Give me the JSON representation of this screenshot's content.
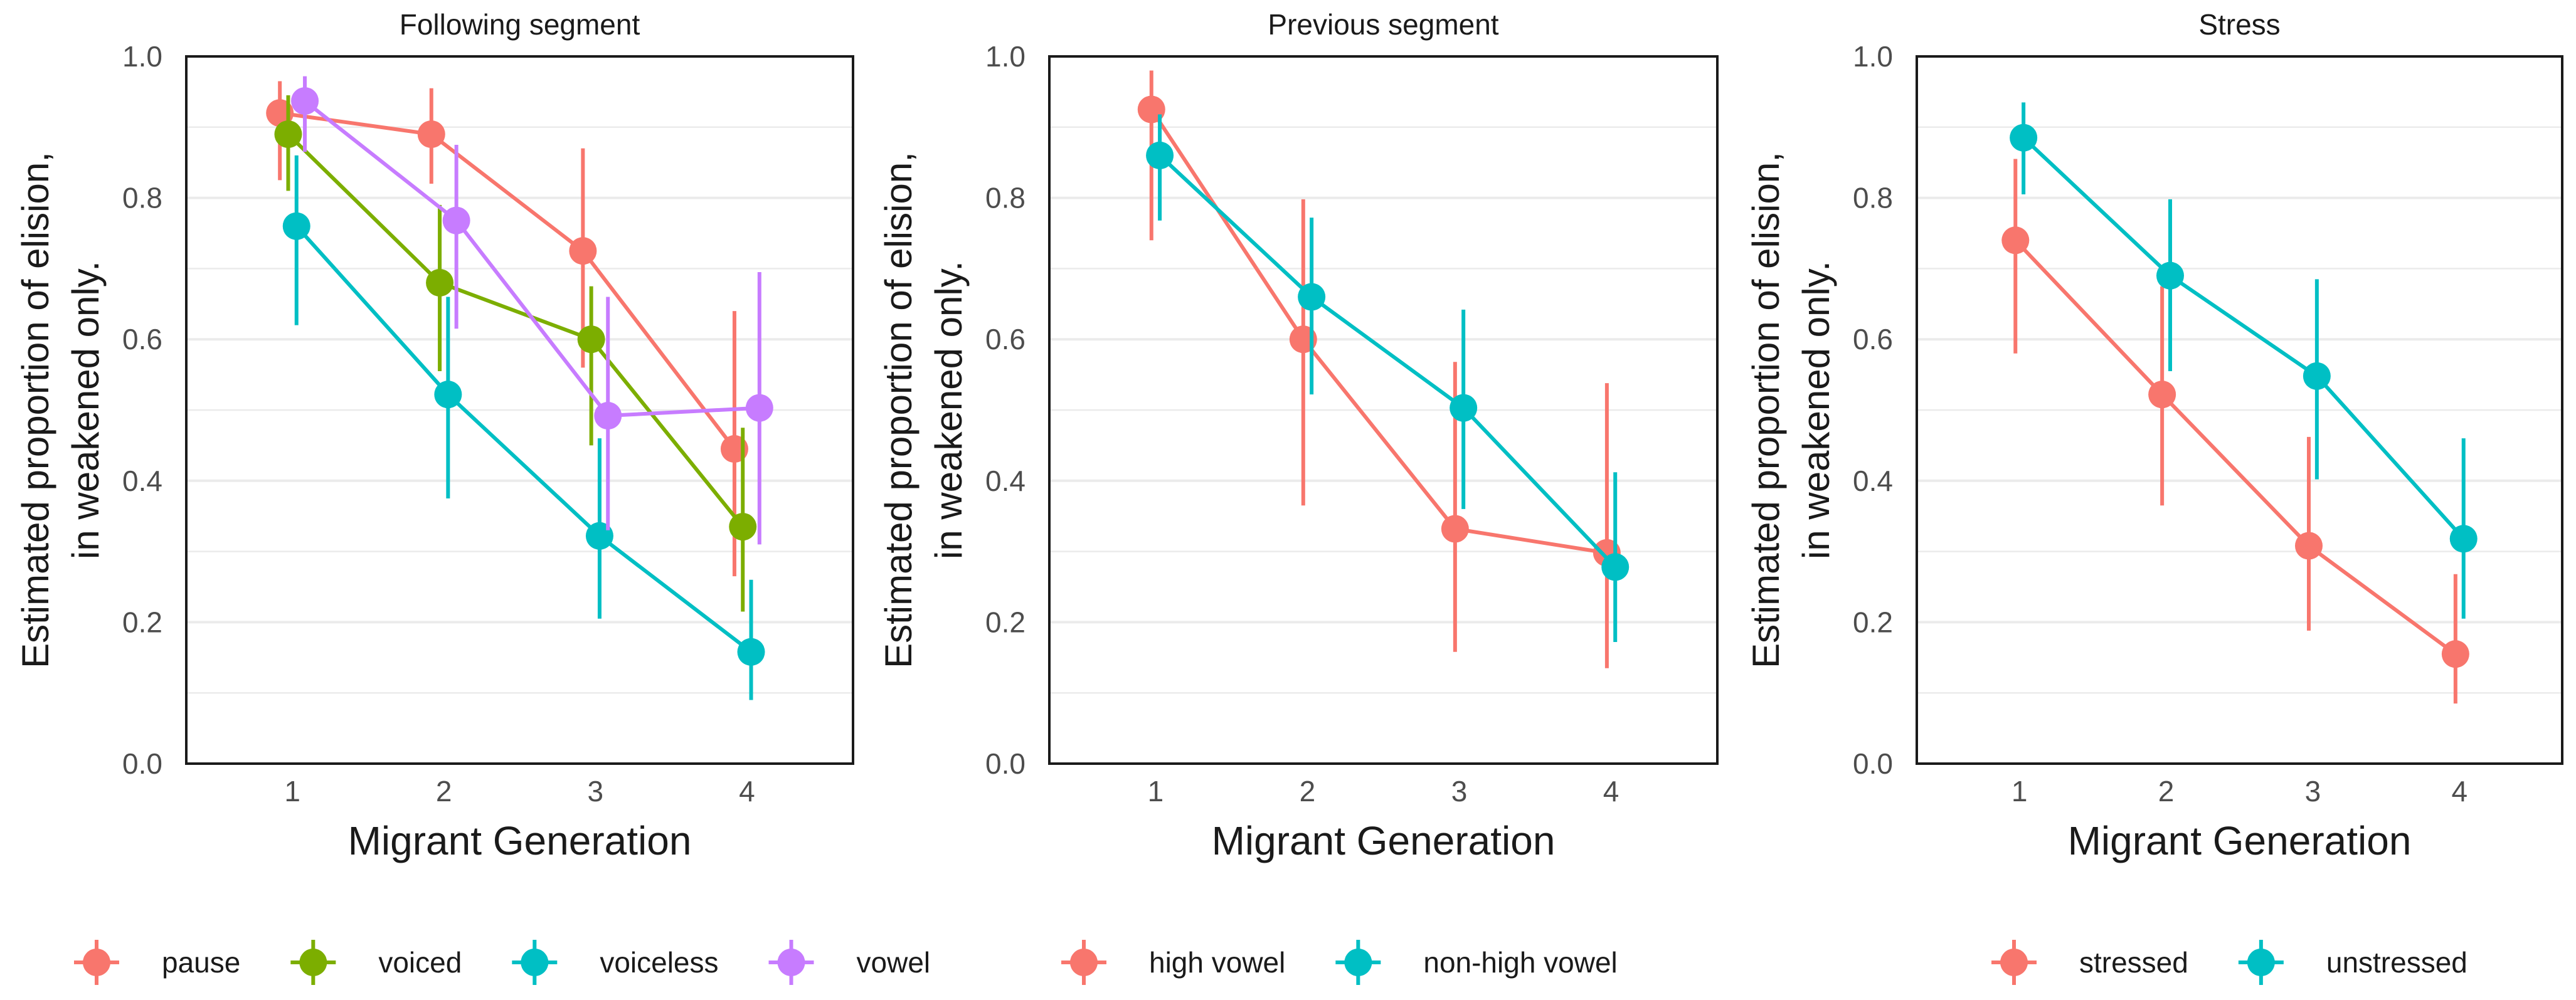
{
  "colors": {
    "red": "#F8766D",
    "green": "#7CAE00",
    "cyan": "#00BFC4",
    "purple": "#C77CFF",
    "grid": "#EBEBEB",
    "axis_text": "#4D4D4D",
    "text": "#1A1A1A"
  },
  "chart_data": [
    {
      "type": "line",
      "title": "Following segment",
      "xlabel": "Migrant Generation",
      "ylabel": "Estimated proportion of elision,\nin weakened only.",
      "ylim": [
        0,
        1
      ],
      "yticks": [
        "0.0",
        "0.2",
        "0.4",
        "0.6",
        "0.8",
        "1.0"
      ],
      "categories": [
        "1",
        "2",
        "3",
        "4"
      ],
      "grid": true,
      "legend_position": "bottom",
      "series": [
        {
          "name": "pause",
          "color": "#F8766D",
          "values": [
            0.92,
            0.89,
            0.725,
            0.445
          ],
          "lower": [
            0.825,
            0.82,
            0.56,
            0.265
          ],
          "upper": [
            0.965,
            0.955,
            0.87,
            0.64
          ]
        },
        {
          "name": "voiced",
          "color": "#7CAE00",
          "values": [
            0.89,
            0.68,
            0.6,
            0.335
          ],
          "lower": [
            0.81,
            0.555,
            0.45,
            0.215
          ],
          "upper": [
            0.945,
            0.79,
            0.675,
            0.475
          ]
        },
        {
          "name": "voiceless",
          "color": "#00BFC4",
          "values": [
            0.76,
            0.522,
            0.322,
            0.158
          ],
          "lower": [
            0.62,
            0.375,
            0.205,
            0.09
          ],
          "upper": [
            0.86,
            0.66,
            0.46,
            0.26
          ]
        },
        {
          "name": "vowel",
          "color": "#C77CFF",
          "values": [
            0.937,
            0.768,
            0.492,
            0.503
          ],
          "lower": [
            0.865,
            0.615,
            0.33,
            0.31
          ],
          "upper": [
            0.972,
            0.875,
            0.66,
            0.695
          ]
        }
      ]
    },
    {
      "type": "line",
      "title": "Previous segment",
      "xlabel": "Migrant Generation",
      "ylabel": "Estimated proportion of elision,\nin weakened only.",
      "ylim": [
        0,
        1
      ],
      "yticks": [
        "0.0",
        "0.2",
        "0.4",
        "0.6",
        "0.8",
        "1.0"
      ],
      "categories": [
        "1",
        "2",
        "3",
        "4"
      ],
      "grid": true,
      "legend_position": "bottom",
      "series": [
        {
          "name": "high vowel",
          "color": "#F8766D",
          "values": [
            0.925,
            0.6,
            0.332,
            0.298
          ],
          "lower": [
            0.74,
            0.365,
            0.158,
            0.135
          ],
          "upper": [
            0.98,
            0.798,
            0.568,
            0.538
          ]
        },
        {
          "name": "non-high vowel",
          "color": "#00BFC4",
          "values": [
            0.86,
            0.66,
            0.503,
            0.278
          ],
          "lower": [
            0.768,
            0.522,
            0.36,
            0.172
          ],
          "upper": [
            0.918,
            0.772,
            0.642,
            0.412
          ]
        }
      ]
    },
    {
      "type": "line",
      "title": "Stress",
      "xlabel": "Migrant Generation",
      "ylabel": "Estimated proportion of elision,\nin weakened only.",
      "ylim": [
        0,
        1
      ],
      "yticks": [
        "0.0",
        "0.2",
        "0.4",
        "0.6",
        "0.8",
        "1.0"
      ],
      "categories": [
        "1",
        "2",
        "3",
        "4"
      ],
      "grid": true,
      "legend_position": "bottom",
      "series": [
        {
          "name": "stressed",
          "color": "#F8766D",
          "values": [
            0.74,
            0.522,
            0.308,
            0.155
          ],
          "lower": [
            0.58,
            0.365,
            0.188,
            0.085
          ],
          "upper": [
            0.855,
            0.675,
            0.462,
            0.268
          ]
        },
        {
          "name": "unstressed",
          "color": "#00BFC4",
          "values": [
            0.885,
            0.69,
            0.548,
            0.318
          ],
          "lower": [
            0.805,
            0.555,
            0.402,
            0.205
          ],
          "upper": [
            0.935,
            0.798,
            0.685,
            0.46
          ]
        }
      ]
    }
  ]
}
